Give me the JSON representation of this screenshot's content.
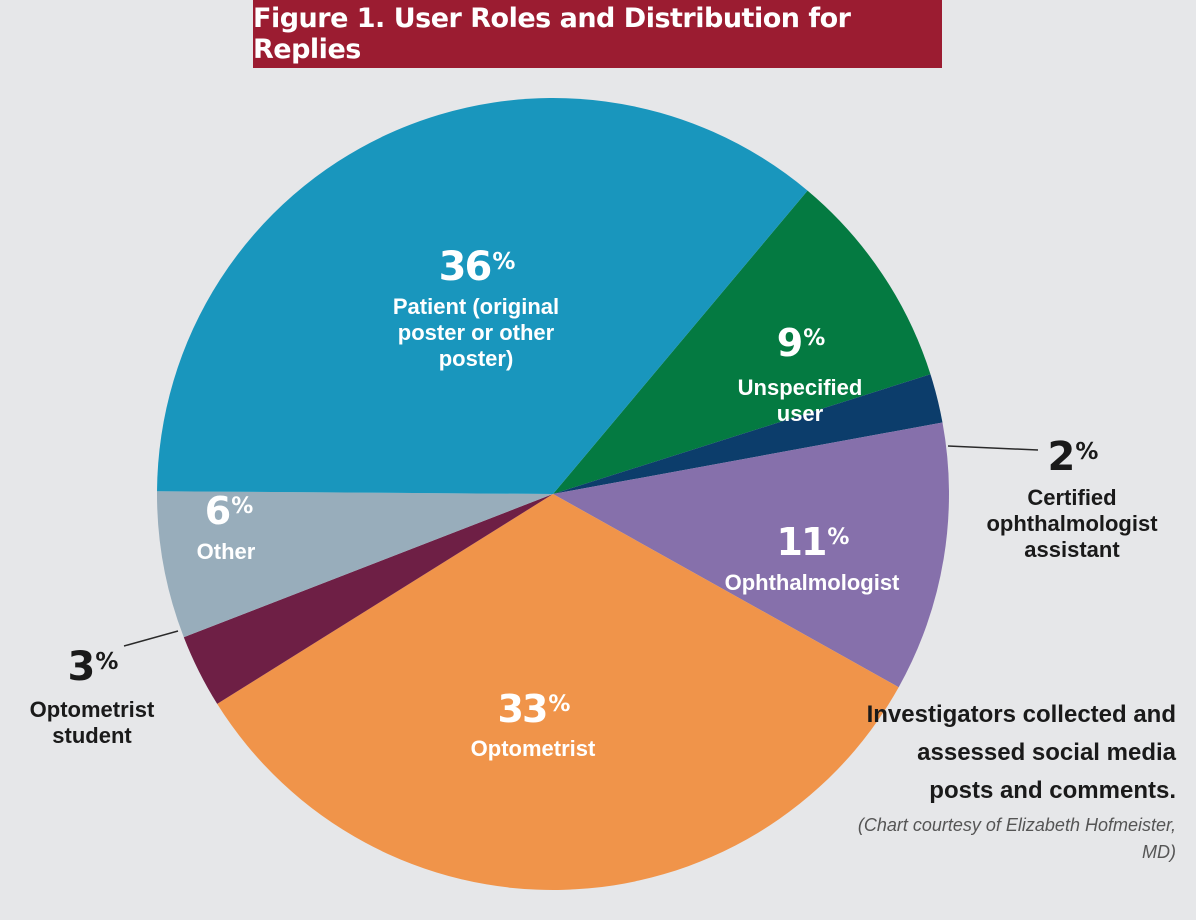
{
  "header": {
    "title": "Figure 1. User Roles and Distribution for Replies"
  },
  "chart_data": {
    "type": "pie",
    "title": "Figure 1. User Roles and Distribution for Replies",
    "slices": [
      {
        "name": "Unspecified user",
        "label_lines": [
          "Unspecified",
          "user"
        ],
        "pct_text": "9%",
        "value": 9,
        "color": "#047a41"
      },
      {
        "name": "Certified ophthalmologist assistant",
        "label_lines": [
          "Certified",
          "ophthalmologist",
          "assistant"
        ],
        "pct_text": "2%",
        "value": 2,
        "color": "#0c3d6b"
      },
      {
        "name": "Ophthalmologist",
        "label_lines": [
          "Ophthalmologist"
        ],
        "pct_text": "11%",
        "value": 11,
        "color": "#8670ab"
      },
      {
        "name": "Optometrist",
        "label_lines": [
          "Optometrist"
        ],
        "pct_text": "33%",
        "value": 33,
        "color": "#f0944a"
      },
      {
        "name": "Optometrist student",
        "label_lines": [
          "Optometrist",
          "student"
        ],
        "pct_text": "3%",
        "value": 3,
        "color": "#6e1f45"
      },
      {
        "name": "Other",
        "label_lines": [
          "Other"
        ],
        "pct_text": "6%",
        "value": 6,
        "color": "#98adbb"
      },
      {
        "name": "Patient (original poster or other poster)",
        "label_lines": [
          "Patient (original",
          "poster or other",
          "poster)"
        ],
        "pct_text": "36%",
        "value": 36,
        "color": "#1996bd"
      }
    ]
  },
  "note": {
    "text": "Investigators collected and assessed social media posts and comments.",
    "credit": "(Chart courtesy of Elizabeth Hofmeister, MD)"
  }
}
